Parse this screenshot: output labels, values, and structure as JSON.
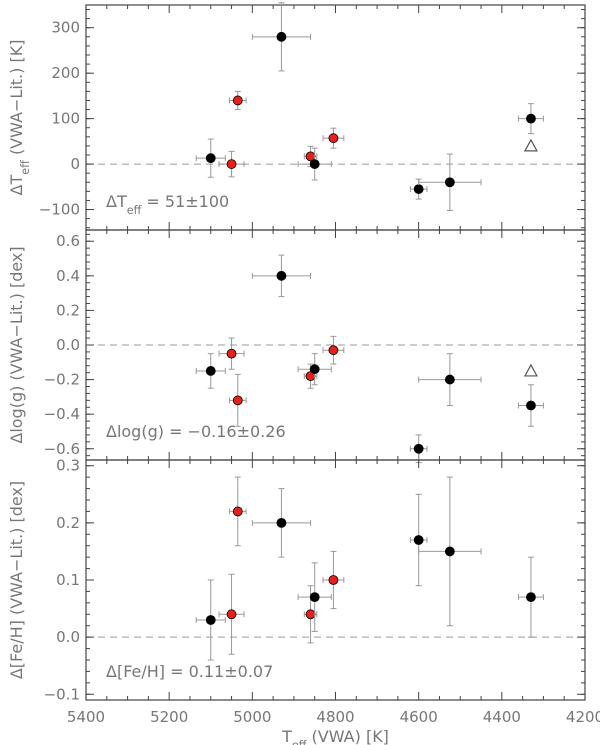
{
  "chart_data": [
    {
      "type": "scatter",
      "ylabel": "ΔT_eff (VWA−Lit.) [K]",
      "ylim": [
        -145,
        350
      ],
      "yticks": [
        -100,
        0,
        100,
        200,
        300
      ],
      "annotation": "ΔT_eff = 51±100",
      "triangle": {
        "x": 4330,
        "y": 40
      },
      "points": [
        {
          "x": 5100,
          "y": 13,
          "xerr": 35,
          "yerr": 42,
          "color": "black"
        },
        {
          "x": 5050,
          "y": 0,
          "xerr": 30,
          "yerr": 28,
          "color": "red"
        },
        {
          "x": 5035,
          "y": 140,
          "xerr": 20,
          "yerr": 20,
          "color": "red"
        },
        {
          "x": 4930,
          "y": 280,
          "xerr": 70,
          "yerr": 75,
          "color": "black"
        },
        {
          "x": 4860,
          "y": 17,
          "xerr": 15,
          "yerr": 22,
          "color": "red"
        },
        {
          "x": 4850,
          "y": 0,
          "xerr": 40,
          "yerr": 35,
          "color": "black"
        },
        {
          "x": 4805,
          "y": 57,
          "xerr": 25,
          "yerr": 22,
          "color": "red"
        },
        {
          "x": 4600,
          "y": -55,
          "xerr": 20,
          "yerr": 22,
          "color": "black"
        },
        {
          "x": 4525,
          "y": -40,
          "xerr": 75,
          "yerr": 62,
          "color": "black"
        },
        {
          "x": 4330,
          "y": 100,
          "xerr": 30,
          "yerr": 33,
          "color": "black"
        }
      ]
    },
    {
      "type": "scatter",
      "ylabel": "Δlog(g) (VWA−Lit.) [dex]",
      "ylim": [
        -0.665,
        0.665
      ],
      "yticks": [
        -0.6,
        -0.4,
        -0.2,
        0.0,
        0.2,
        0.4,
        0.6
      ],
      "ytick_labels": [
        "−0.6",
        "−0.4",
        "−0.2",
        "0.0",
        "0.2",
        "0.4",
        "0.6"
      ],
      "annotation": "Δlog(g) = −0.16±0.26",
      "triangle": {
        "x": 4330,
        "y": -0.15
      },
      "points": [
        {
          "x": 5100,
          "y": -0.15,
          "xerr": 35,
          "yerr": 0.1,
          "color": "black"
        },
        {
          "x": 5050,
          "y": -0.05,
          "xerr": 30,
          "yerr": 0.09,
          "color": "red"
        },
        {
          "x": 5035,
          "y": -0.32,
          "xerr": 20,
          "yerr": 0.15,
          "color": "red"
        },
        {
          "x": 4930,
          "y": 0.4,
          "xerr": 70,
          "yerr": 0.12,
          "color": "black"
        },
        {
          "x": 4860,
          "y": -0.18,
          "xerr": 15,
          "yerr": 0.07,
          "color": "red"
        },
        {
          "x": 4850,
          "y": -0.14,
          "xerr": 40,
          "yerr": 0.09,
          "color": "black"
        },
        {
          "x": 4805,
          "y": -0.03,
          "xerr": 25,
          "yerr": 0.08,
          "color": "red"
        },
        {
          "x": 4600,
          "y": -0.6,
          "xerr": 20,
          "yerr": 0.08,
          "color": "black"
        },
        {
          "x": 4525,
          "y": -0.2,
          "xerr": 75,
          "yerr": 0.15,
          "color": "black"
        },
        {
          "x": 4330,
          "y": -0.35,
          "xerr": 30,
          "yerr": 0.12,
          "color": "black"
        }
      ]
    },
    {
      "type": "scatter",
      "ylabel": "Δ[Fe/H] (VWA−Lit.) [dex]",
      "ylim": [
        -0.11,
        0.31
      ],
      "yticks": [
        -0.1,
        0.0,
        0.1,
        0.2,
        0.3
      ],
      "ytick_labels": [
        "−0.1",
        "0.0",
        "0.1",
        "0.2",
        "0.3"
      ],
      "annotation": "Δ[Fe/H] = 0.11±0.07",
      "points": [
        {
          "x": 5100,
          "y": 0.03,
          "xerr": 35,
          "yerr": 0.07,
          "color": "black"
        },
        {
          "x": 5050,
          "y": 0.04,
          "xerr": 30,
          "yerr": 0.07,
          "color": "red"
        },
        {
          "x": 5035,
          "y": 0.22,
          "xerr": 20,
          "yerr": 0.06,
          "color": "red"
        },
        {
          "x": 4930,
          "y": 0.2,
          "xerr": 70,
          "yerr": 0.06,
          "color": "black"
        },
        {
          "x": 4860,
          "y": 0.04,
          "xerr": 15,
          "yerr": 0.05,
          "color": "red"
        },
        {
          "x": 4850,
          "y": 0.07,
          "xerr": 40,
          "yerr": 0.06,
          "color": "black"
        },
        {
          "x": 4805,
          "y": 0.1,
          "xerr": 25,
          "yerr": 0.05,
          "color": "red"
        },
        {
          "x": 4600,
          "y": 0.17,
          "xerr": 20,
          "yerr": 0.08,
          "color": "black"
        },
        {
          "x": 4525,
          "y": 0.15,
          "xerr": 75,
          "yerr": 0.13,
          "color": "black"
        },
        {
          "x": 4330,
          "y": 0.07,
          "xerr": 30,
          "yerr": 0.07,
          "color": "black"
        }
      ]
    }
  ],
  "x_axis": {
    "label": "T_eff (VWA) [K]",
    "xlim": [
      5400,
      4200
    ],
    "ticks": [
      5400,
      5200,
      5000,
      4800,
      4600,
      4400,
      4200
    ]
  },
  "colors": {
    "black_point": "#000000",
    "red_point": "#e8201c",
    "errorbar": "#999999",
    "zero_line": "#9a9a9a",
    "axis": "#444444",
    "text": "#777777"
  }
}
